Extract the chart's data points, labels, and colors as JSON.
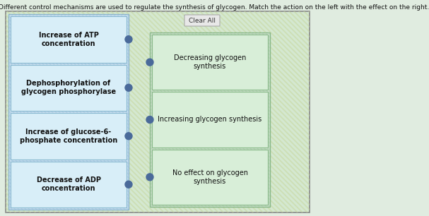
{
  "title": "Different control mechanisms are used to regulate the synthesis of glycogen. Match the action on the left with the effect on the right.",
  "title_fontsize": 6.5,
  "left_items": [
    "Increase of ATP\nconcentration",
    "Dephosphorylation of\nglycogen phosphorylase",
    "Increase of glucose-6-\nphosphate concentration",
    "Decrease of ADP\nconcentration"
  ],
  "right_items": [
    "Decreasing glycogen\nsynthesis",
    "Increasing glycogen synthesis",
    "No effect on glycogen\nsynthesis"
  ],
  "clear_all_label": "Clear All",
  "outer_bg": "#cce8cc",
  "stripe_color": "#e8f0c8",
  "left_col_bg": "#c8dff0",
  "left_stripe": "#b0cce0",
  "left_item_bg": "#d8eef8",
  "left_item_border": "#88b8d0",
  "right_col_bg": "#c8dfc8",
  "right_item_bg": "#d8eed8",
  "right_item_border": "#88b888",
  "dot_color": "#4a6a9a",
  "text_color": "#111111",
  "bold_text": true,
  "clear_btn_bg": "#e8e8e8",
  "clear_btn_border": "#aaaaaa",
  "outer_border": "#888888",
  "page_bg": "#e0ece0"
}
